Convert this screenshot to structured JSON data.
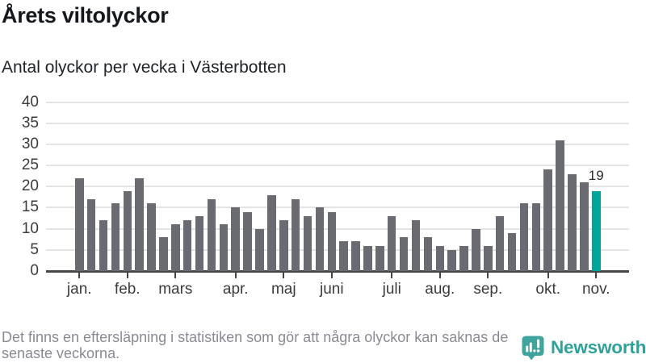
{
  "title": "Årets viltolyckor",
  "subtitle": "Antal olyckor per vecka i Västerbotten",
  "footnote": {
    "line1": "Det finns en eftersläpning i statistiken som gör att några olyckor kan saknas de",
    "line2": "senaste veckorna."
  },
  "brand": {
    "name": "Newsworthy",
    "icon": "newsworthy-logo-icon"
  },
  "colors": {
    "bar": "#6a6a71",
    "highlight": "#00a49b",
    "grid": "#e4e4e4",
    "axis": "#474747",
    "text": "#3c3c3c",
    "title": "#15181c",
    "subtitle": "#202428",
    "muted": "#898a93",
    "annotation": "#2b2b2b",
    "brand_icon": "#3ea49d",
    "brand_text": "#2ea19a"
  },
  "chart_data": {
    "type": "bar",
    "title": "Årets viltolyckor",
    "subtitle": "Antal olyckor per vecka i Västerbotten",
    "ylabel": "Antal olyckor per vecka",
    "xlabel": "",
    "ylim": [
      0,
      40
    ],
    "yticks": [
      0,
      5,
      10,
      15,
      20,
      25,
      30,
      35,
      40
    ],
    "grid": true,
    "unit": "olyckor",
    "region": "Västerbotten",
    "categories_are_weeks": true,
    "month_labels": [
      "jan.",
      "feb.",
      "mars",
      "apr.",
      "maj",
      "juni",
      "juli",
      "aug.",
      "sep.",
      "okt.",
      "nov."
    ],
    "month_tick_bar_index": [
      0,
      4,
      8,
      13,
      17,
      21,
      26,
      30,
      34,
      39,
      43
    ],
    "values": [
      22,
      17,
      12,
      16,
      19,
      22,
      16,
      8,
      11,
      12,
      13,
      17,
      11,
      15,
      14,
      10,
      18,
      12,
      17,
      13,
      15,
      14,
      7,
      7,
      6,
      6,
      13,
      8,
      12,
      8,
      6,
      5,
      6,
      10,
      6,
      13,
      9,
      16,
      16,
      24,
      31,
      23,
      21,
      19
    ],
    "highlight_index": 43,
    "highlight_label": "19"
  }
}
